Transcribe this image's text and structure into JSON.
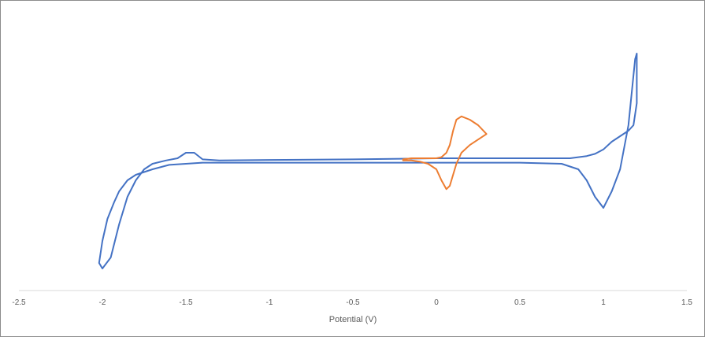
{
  "chart_data": {
    "type": "line",
    "title": "",
    "xlabel": "Potential (V)",
    "ylabel": "",
    "xlim": [
      -2.5,
      1.5
    ],
    "ylim": [
      -1.0,
      1.0
    ],
    "x_ticks": [
      "-2.5",
      "-2",
      "-1.5",
      "-1",
      "-0.5",
      "0",
      "0.5",
      "1",
      "1.5"
    ],
    "x_tick_values": [
      -2.5,
      -2,
      -1.5,
      -1,
      -0.5,
      0,
      0.5,
      1,
      1.5
    ],
    "y_axis_visible": false,
    "grid": false,
    "legend": "none",
    "series": [
      {
        "color": "#4472C4",
        "x": [
          0.0,
          -0.5,
          -1.0,
          -1.3,
          -1.4,
          -1.45,
          -1.5,
          -1.55,
          -1.62,
          -1.7,
          -1.75,
          -1.8,
          -1.85,
          -1.9,
          -1.95,
          -2.0,
          -2.02,
          -2.0,
          -1.97,
          -1.93,
          -1.9,
          -1.85,
          -1.8,
          -1.7,
          -1.6,
          -1.5,
          -1.4,
          -1.3,
          -1.0,
          -0.5,
          0.0,
          0.5,
          0.75,
          0.85,
          0.9,
          0.95,
          1.0,
          1.05,
          1.1,
          1.15,
          1.19,
          1.2,
          1.2,
          1.18,
          1.15,
          1.1,
          1.05,
          1.0,
          0.95,
          0.9,
          0.85,
          0.8,
          0.7,
          0.5,
          0.0
        ],
        "y": [
          0.0,
          -0.01,
          -0.015,
          -0.02,
          -0.01,
          0.05,
          0.05,
          0.0,
          -0.02,
          -0.05,
          -0.1,
          -0.2,
          -0.35,
          -0.6,
          -0.9,
          -1.0,
          -0.95,
          -0.75,
          -0.55,
          -0.4,
          -0.3,
          -0.2,
          -0.15,
          -0.1,
          -0.06,
          -0.05,
          -0.04,
          -0.04,
          -0.04,
          -0.04,
          -0.04,
          -0.04,
          -0.05,
          -0.1,
          -0.2,
          -0.35,
          -0.45,
          -0.3,
          -0.1,
          0.3,
          0.9,
          0.95,
          0.5,
          0.3,
          0.25,
          0.2,
          0.15,
          0.08,
          0.04,
          0.02,
          0.01,
          0.0,
          0.0,
          0.0,
          0.0
        ]
      },
      {
        "color": "#ED7D31",
        "x": [
          -0.2,
          -0.15,
          -0.1,
          -0.05,
          0.0,
          0.03,
          0.06,
          0.08,
          0.1,
          0.12,
          0.15,
          0.2,
          0.25,
          0.3,
          0.25,
          0.2,
          0.15,
          0.12,
          0.1,
          0.08,
          0.06,
          0.03,
          0.0,
          -0.05,
          -0.1,
          -0.15,
          -0.2
        ],
        "y": [
          -0.02,
          -0.02,
          -0.03,
          -0.05,
          -0.1,
          -0.2,
          -0.28,
          -0.25,
          -0.15,
          -0.05,
          0.05,
          0.12,
          0.17,
          0.22,
          0.3,
          0.35,
          0.38,
          0.35,
          0.25,
          0.12,
          0.05,
          0.01,
          0.0,
          0.0,
          0.0,
          0.0,
          -0.01
        ]
      }
    ]
  }
}
